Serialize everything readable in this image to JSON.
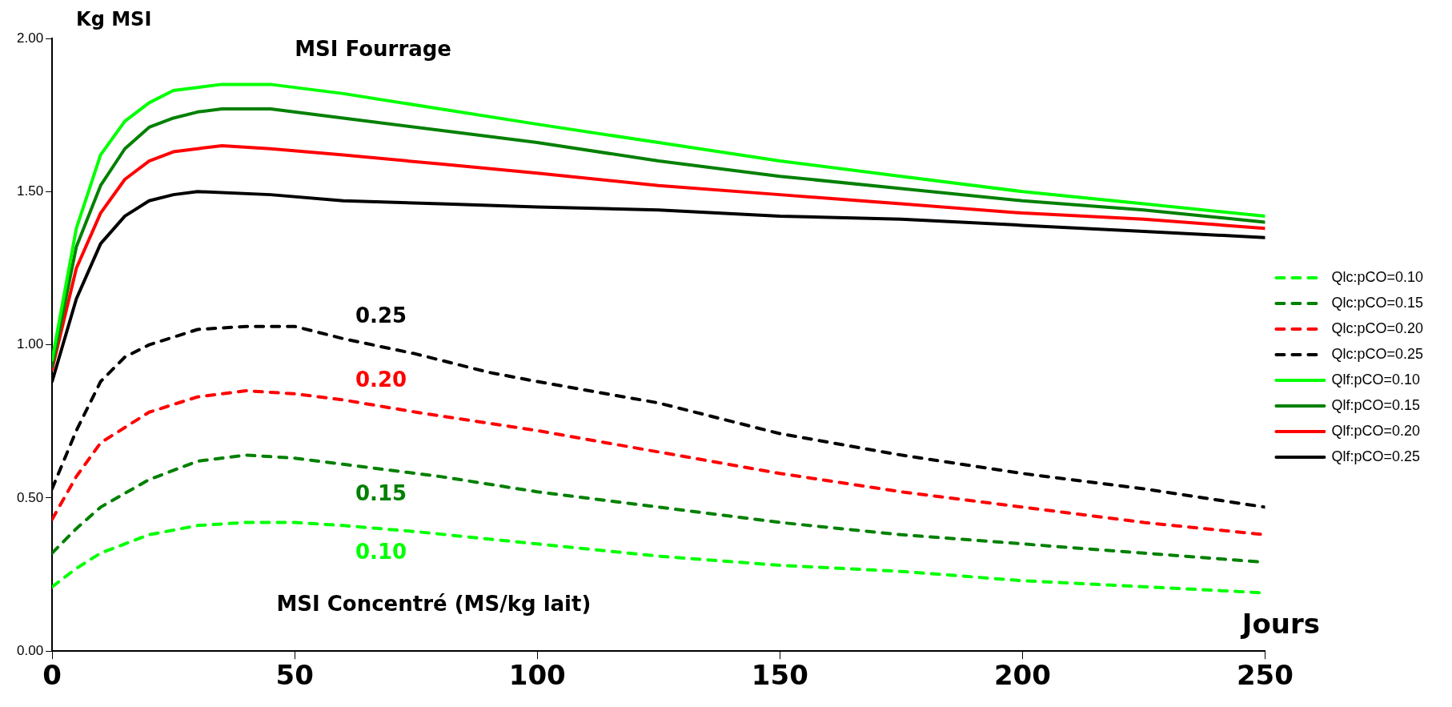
{
  "chart_data": {
    "type": "line",
    "ylabel": "Kg MSI",
    "xlabel": "Jours",
    "xlim": [
      0,
      250
    ],
    "xticks": [
      0,
      50,
      100,
      150,
      200,
      250
    ],
    "ylim": [
      0,
      2
    ],
    "yticks": [
      {
        "value": 0,
        "label": "0.00"
      },
      {
        "value": 0.5,
        "label": "0.50"
      },
      {
        "value": 1,
        "label": "1.00"
      },
      {
        "value": 1.5,
        "label": "1.50"
      },
      {
        "value": 2,
        "label": "2.00"
      }
    ],
    "grid": false,
    "legend": "right",
    "marker": "none",
    "series": [
      {
        "name": "Qlc:pCO=0.10",
        "color": "#00ff00",
        "line_style": "dashed",
        "x": [
          0,
          5,
          10,
          20,
          30,
          40,
          50,
          60,
          75,
          100,
          125,
          150,
          175,
          200,
          225,
          250
        ],
        "values": [
          0.21,
          0.27,
          0.32,
          0.38,
          0.41,
          0.42,
          0.42,
          0.41,
          0.39,
          0.35,
          0.31,
          0.28,
          0.26,
          0.23,
          0.21,
          0.19
        ]
      },
      {
        "name": "Qlc:pCO=0.15",
        "color": "#008000",
        "line_style": "dashed",
        "x": [
          0,
          5,
          10,
          20,
          30,
          40,
          50,
          60,
          80,
          100,
          125,
          150,
          175,
          200,
          225,
          250
        ],
        "values": [
          0.32,
          0.4,
          0.47,
          0.56,
          0.62,
          0.64,
          0.63,
          0.61,
          0.57,
          0.52,
          0.47,
          0.42,
          0.38,
          0.35,
          0.32,
          0.29
        ]
      },
      {
        "name": "Qlc:pCO=0.20",
        "color": "#ff0000",
        "line_style": "dashed",
        "x": [
          0,
          5,
          10,
          20,
          30,
          40,
          50,
          60,
          75,
          100,
          125,
          150,
          175,
          200,
          225,
          250
        ],
        "values": [
          0.43,
          0.57,
          0.68,
          0.78,
          0.83,
          0.85,
          0.84,
          0.82,
          0.78,
          0.72,
          0.65,
          0.58,
          0.52,
          0.47,
          0.42,
          0.38
        ]
      },
      {
        "name": "Qlc:pCO=0.25",
        "color": "#000000",
        "line_style": "dashed",
        "x": [
          0,
          5,
          10,
          15,
          20,
          30,
          40,
          50,
          60,
          75,
          90,
          100,
          125,
          150,
          175,
          200,
          225,
          250
        ],
        "values": [
          0.53,
          0.72,
          0.88,
          0.96,
          1.0,
          1.05,
          1.06,
          1.06,
          1.02,
          0.97,
          0.91,
          0.88,
          0.81,
          0.71,
          0.64,
          0.58,
          0.53,
          0.47
        ]
      },
      {
        "name": "Qlf:pCO=0.10",
        "color": "#00ff00",
        "line_style": "solid",
        "x": [
          0,
          5,
          10,
          15,
          20,
          25,
          30,
          35,
          45,
          60,
          80,
          100,
          125,
          150,
          175,
          200,
          225,
          250
        ],
        "values": [
          0.95,
          1.38,
          1.62,
          1.73,
          1.79,
          1.83,
          1.84,
          1.85,
          1.85,
          1.82,
          1.77,
          1.72,
          1.66,
          1.6,
          1.55,
          1.5,
          1.46,
          1.42
        ]
      },
      {
        "name": "Qlf:pCO=0.15",
        "color": "#008000",
        "line_style": "solid",
        "x": [
          0,
          5,
          10,
          15,
          20,
          25,
          30,
          35,
          45,
          60,
          80,
          100,
          125,
          150,
          175,
          200,
          225,
          250
        ],
        "values": [
          0.93,
          1.32,
          1.52,
          1.64,
          1.71,
          1.74,
          1.76,
          1.77,
          1.77,
          1.74,
          1.7,
          1.66,
          1.6,
          1.55,
          1.51,
          1.47,
          1.44,
          1.4
        ]
      },
      {
        "name": "Qlf:pCO=0.20",
        "color": "#ff0000",
        "line_style": "solid",
        "x": [
          0,
          5,
          10,
          15,
          20,
          25,
          30,
          35,
          45,
          60,
          80,
          100,
          125,
          150,
          175,
          200,
          225,
          250
        ],
        "values": [
          0.92,
          1.25,
          1.43,
          1.54,
          1.6,
          1.63,
          1.64,
          1.65,
          1.64,
          1.62,
          1.59,
          1.56,
          1.52,
          1.49,
          1.46,
          1.43,
          1.41,
          1.38
        ]
      },
      {
        "name": "Qlf:pCO=0.25",
        "color": "#000000",
        "line_style": "solid",
        "x": [
          0,
          5,
          10,
          15,
          20,
          25,
          30,
          45,
          60,
          80,
          100,
          125,
          150,
          175,
          200,
          225,
          250
        ],
        "values": [
          0.88,
          1.15,
          1.33,
          1.42,
          1.47,
          1.49,
          1.5,
          1.49,
          1.47,
          1.46,
          1.45,
          1.44,
          1.42,
          1.41,
          1.39,
          1.37,
          1.35
        ]
      }
    ],
    "annotations": [
      "MSI Fourrage",
      "0.25",
      "0.20",
      "0.15",
      "0.10",
      "MSI Concentré (MS/kg lait)"
    ]
  }
}
